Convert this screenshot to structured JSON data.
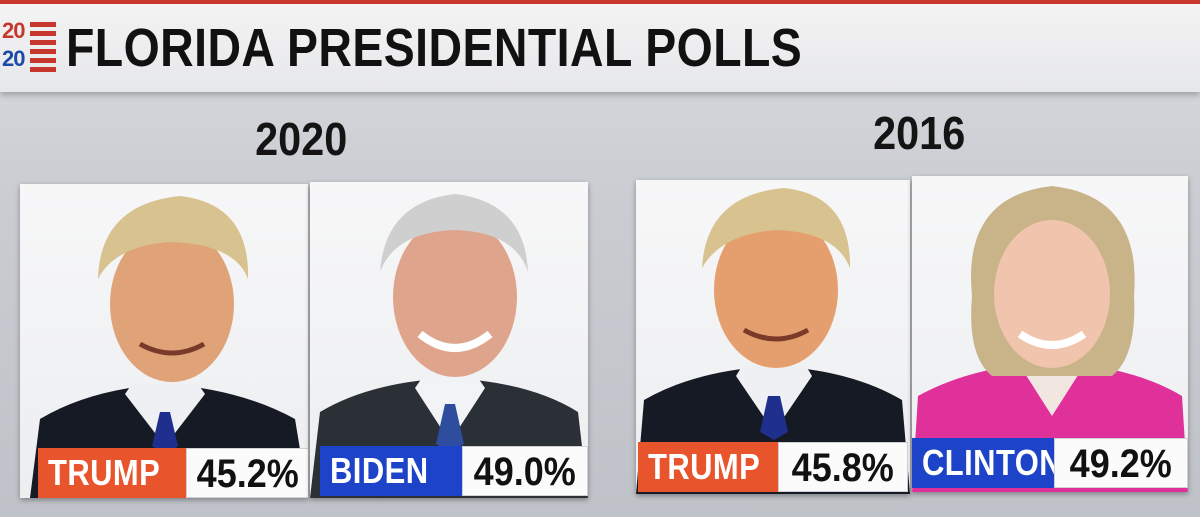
{
  "header": {
    "logo_top": "20",
    "logo_bottom": "20",
    "title": "FLORIDA PRESIDENTIAL POLLS"
  },
  "colors": {
    "rep": "#e8552d",
    "dem": "#1d44c8"
  },
  "groups": [
    {
      "year": "2020",
      "candidates": [
        {
          "name": "TRUMP",
          "pct": "45.2%",
          "party": "rep",
          "portrait": "trump-portrait"
        },
        {
          "name": "BIDEN",
          "pct": "49.0%",
          "party": "dem",
          "portrait": "biden-portrait"
        }
      ]
    },
    {
      "year": "2016",
      "candidates": [
        {
          "name": "TRUMP",
          "pct": "45.8%",
          "party": "rep",
          "portrait": "trump-portrait"
        },
        {
          "name": "CLINTON",
          "pct": "49.2%",
          "party": "dem",
          "portrait": "clinton-portrait"
        }
      ]
    }
  ]
}
